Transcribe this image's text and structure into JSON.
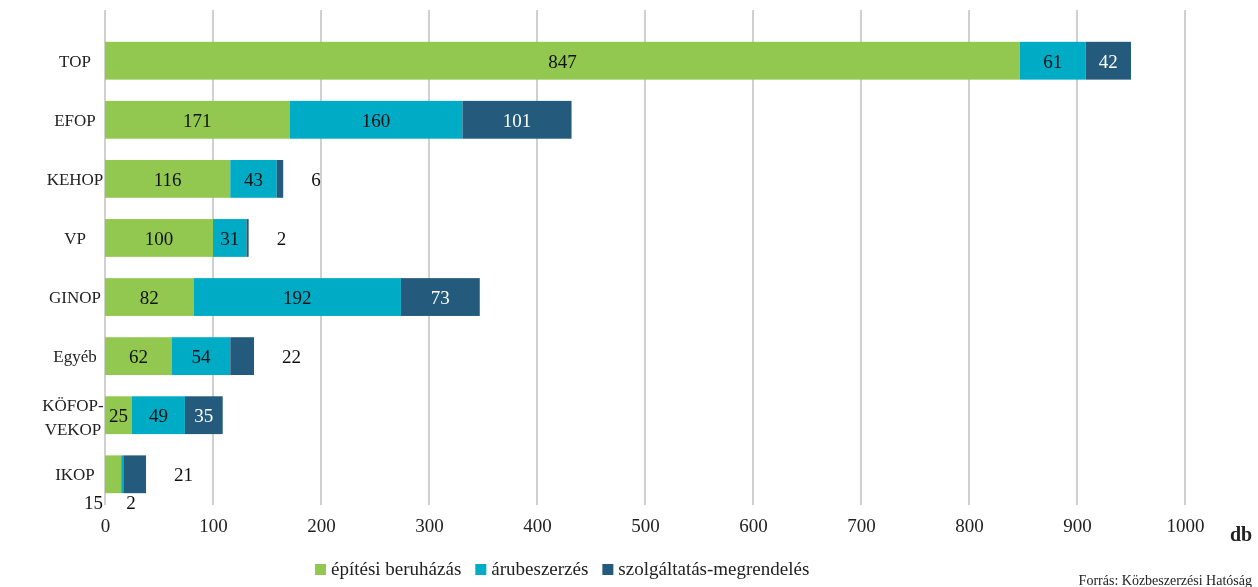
{
  "chart_data": {
    "type": "bar",
    "orientation": "horizontal",
    "stacked": true,
    "xlabel": "db",
    "categories": [
      "TOP",
      "EFOP",
      "KEHOP",
      "VP",
      "GINOP",
      "Egyéb",
      "KÖFOP-VEKOP",
      "IKOP"
    ],
    "series": [
      {
        "name": "építési beruházás",
        "color": "#92c850",
        "values": [
          847,
          171,
          116,
          100,
          82,
          62,
          25,
          15
        ]
      },
      {
        "name": "árubeszerzés",
        "color": "#00abc6",
        "values": [
          61,
          160,
          43,
          31,
          192,
          54,
          49,
          2
        ]
      },
      {
        "name": "szolgáltatás-megrendelés",
        "color": "#245b7c",
        "values": [
          42,
          101,
          6,
          2,
          73,
          22,
          35,
          21
        ]
      }
    ],
    "xlim": [
      0,
      1000
    ],
    "xticks": [
      0,
      100,
      200,
      300,
      400,
      500,
      600,
      700,
      800,
      900,
      1000
    ],
    "grid": "x",
    "legend": "bottom",
    "data_labels": true,
    "annotations": [
      "Forrás: Közbeszerzési Hatóság"
    ]
  }
}
